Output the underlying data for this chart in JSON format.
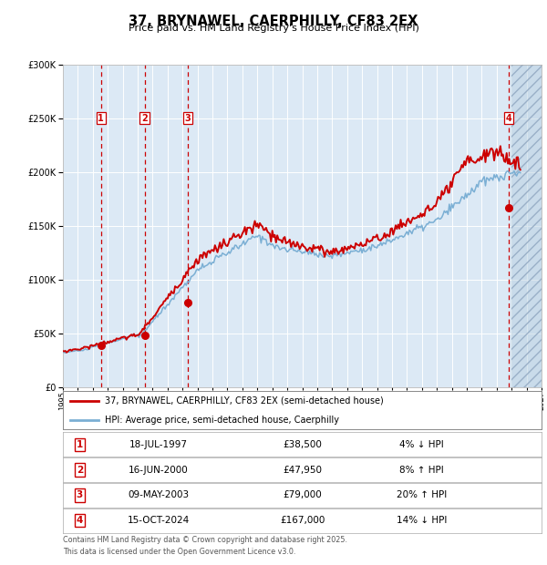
{
  "title": "37, BRYNAWEL, CAERPHILLY, CF83 2EX",
  "subtitle": "Price paid vs. HM Land Registry's House Price Index (HPI)",
  "bg_color": "#dce9f5",
  "grid_color": "#ffffff",
  "hpi_line_color": "#7bafd4",
  "price_line_color": "#cc0000",
  "marker_color": "#cc0000",
  "sales": [
    {
      "date_x": 1997.54,
      "price": 38500,
      "label": "1"
    },
    {
      "date_x": 2000.46,
      "price": 47950,
      "label": "2"
    },
    {
      "date_x": 2003.36,
      "price": 79000,
      "label": "3"
    },
    {
      "date_x": 2024.79,
      "price": 167000,
      "label": "4"
    }
  ],
  "xmin": 1995.0,
  "xmax": 2027.0,
  "ymin": 0,
  "ymax": 300000,
  "future_start": 2025.0,
  "legend_line1": "37, BRYNAWEL, CAERPHILLY, CF83 2EX (semi-detached house)",
  "legend_line2": "HPI: Average price, semi-detached house, Caerphilly",
  "footer1": "Contains HM Land Registry data © Crown copyright and database right 2025.",
  "footer2": "This data is licensed under the Open Government Licence v3.0.",
  "table_rows": [
    [
      "1",
      "18-JUL-1997",
      "£38,500",
      "4% ↓ HPI"
    ],
    [
      "2",
      "16-JUN-2000",
      "£47,950",
      "8% ↑ HPI"
    ],
    [
      "3",
      "09-MAY-2003",
      "£79,000",
      "20% ↑ HPI"
    ],
    [
      "4",
      "15-OCT-2024",
      "£167,000",
      "14% ↓ HPI"
    ]
  ]
}
